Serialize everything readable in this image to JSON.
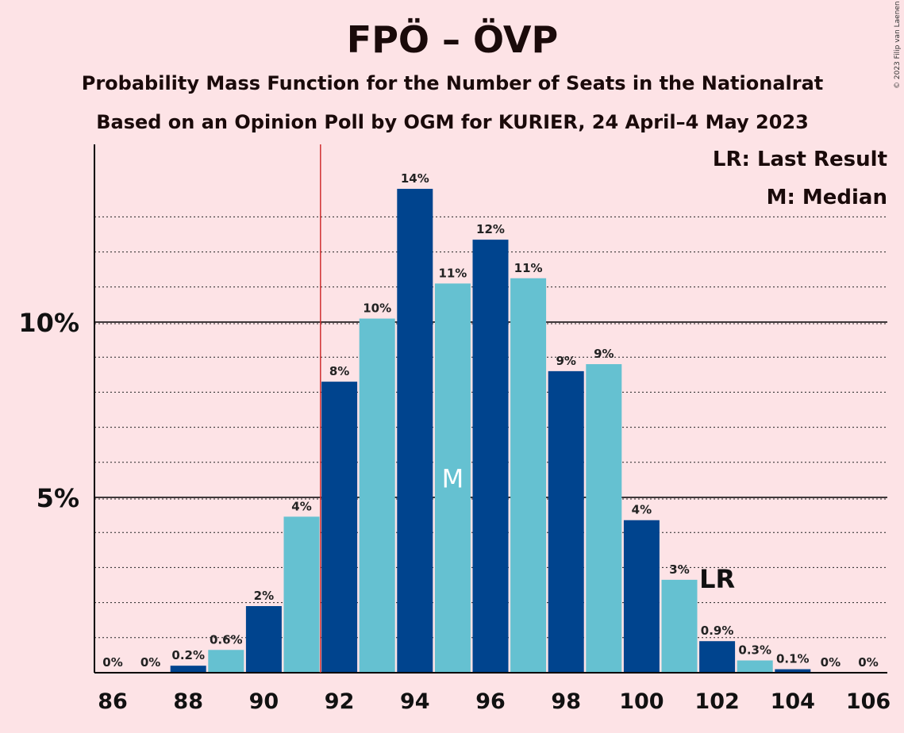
{
  "chart_data": {
    "type": "bar",
    "title": "FPÖ – ÖVP",
    "subtitle_line1": "Probability Mass Function for the Number of Seats in the Nationalrat",
    "subtitle_line2": "Based on an Opinion Poll by OGM for KURIER, 24 April–4 May 2023",
    "copyright": "© 2023 Filip van Laenen",
    "legend": {
      "lr": "LR: Last Result",
      "median": "M: Median",
      "placement": "top-right"
    },
    "x": [
      86,
      87,
      88,
      89,
      90,
      91,
      92,
      93,
      94,
      95,
      96,
      97,
      98,
      99,
      100,
      101,
      102,
      103,
      104,
      105,
      106
    ],
    "values": [
      0,
      0,
      0.2,
      0.65,
      1.9,
      4.45,
      8.3,
      10.1,
      13.8,
      11.1,
      12.35,
      11.25,
      8.6,
      8.8,
      4.35,
      2.65,
      0.9,
      0.35,
      0.1,
      0,
      0
    ],
    "labels": [
      "0%",
      "0%",
      "0.2%",
      "0.6%",
      "2%",
      "4%",
      "8%",
      "10%",
      "14%",
      "11%",
      "12%",
      "11%",
      "9%",
      "9%",
      "4%",
      "3%",
      "0.9%",
      "0.3%",
      "0.1%",
      "0%",
      "0%"
    ],
    "x_tick_labels": [
      "86",
      "88",
      "90",
      "92",
      "94",
      "96",
      "98",
      "100",
      "102",
      "104",
      "106"
    ],
    "y_tick_labels": [
      "5%",
      "10%"
    ],
    "y_ticks": [
      5,
      10
    ],
    "ylim": [
      0,
      15
    ],
    "majority_line_x": 91.5,
    "median_seat": 95,
    "median_marker": "M",
    "last_result_seat": 102,
    "last_result_marker": "LR",
    "colors": {
      "background": "#fde3e6",
      "bar_dark": "#00448e",
      "bar_light": "#65c1d1",
      "majority_line": "#d03030",
      "text": "#111111"
    }
  }
}
